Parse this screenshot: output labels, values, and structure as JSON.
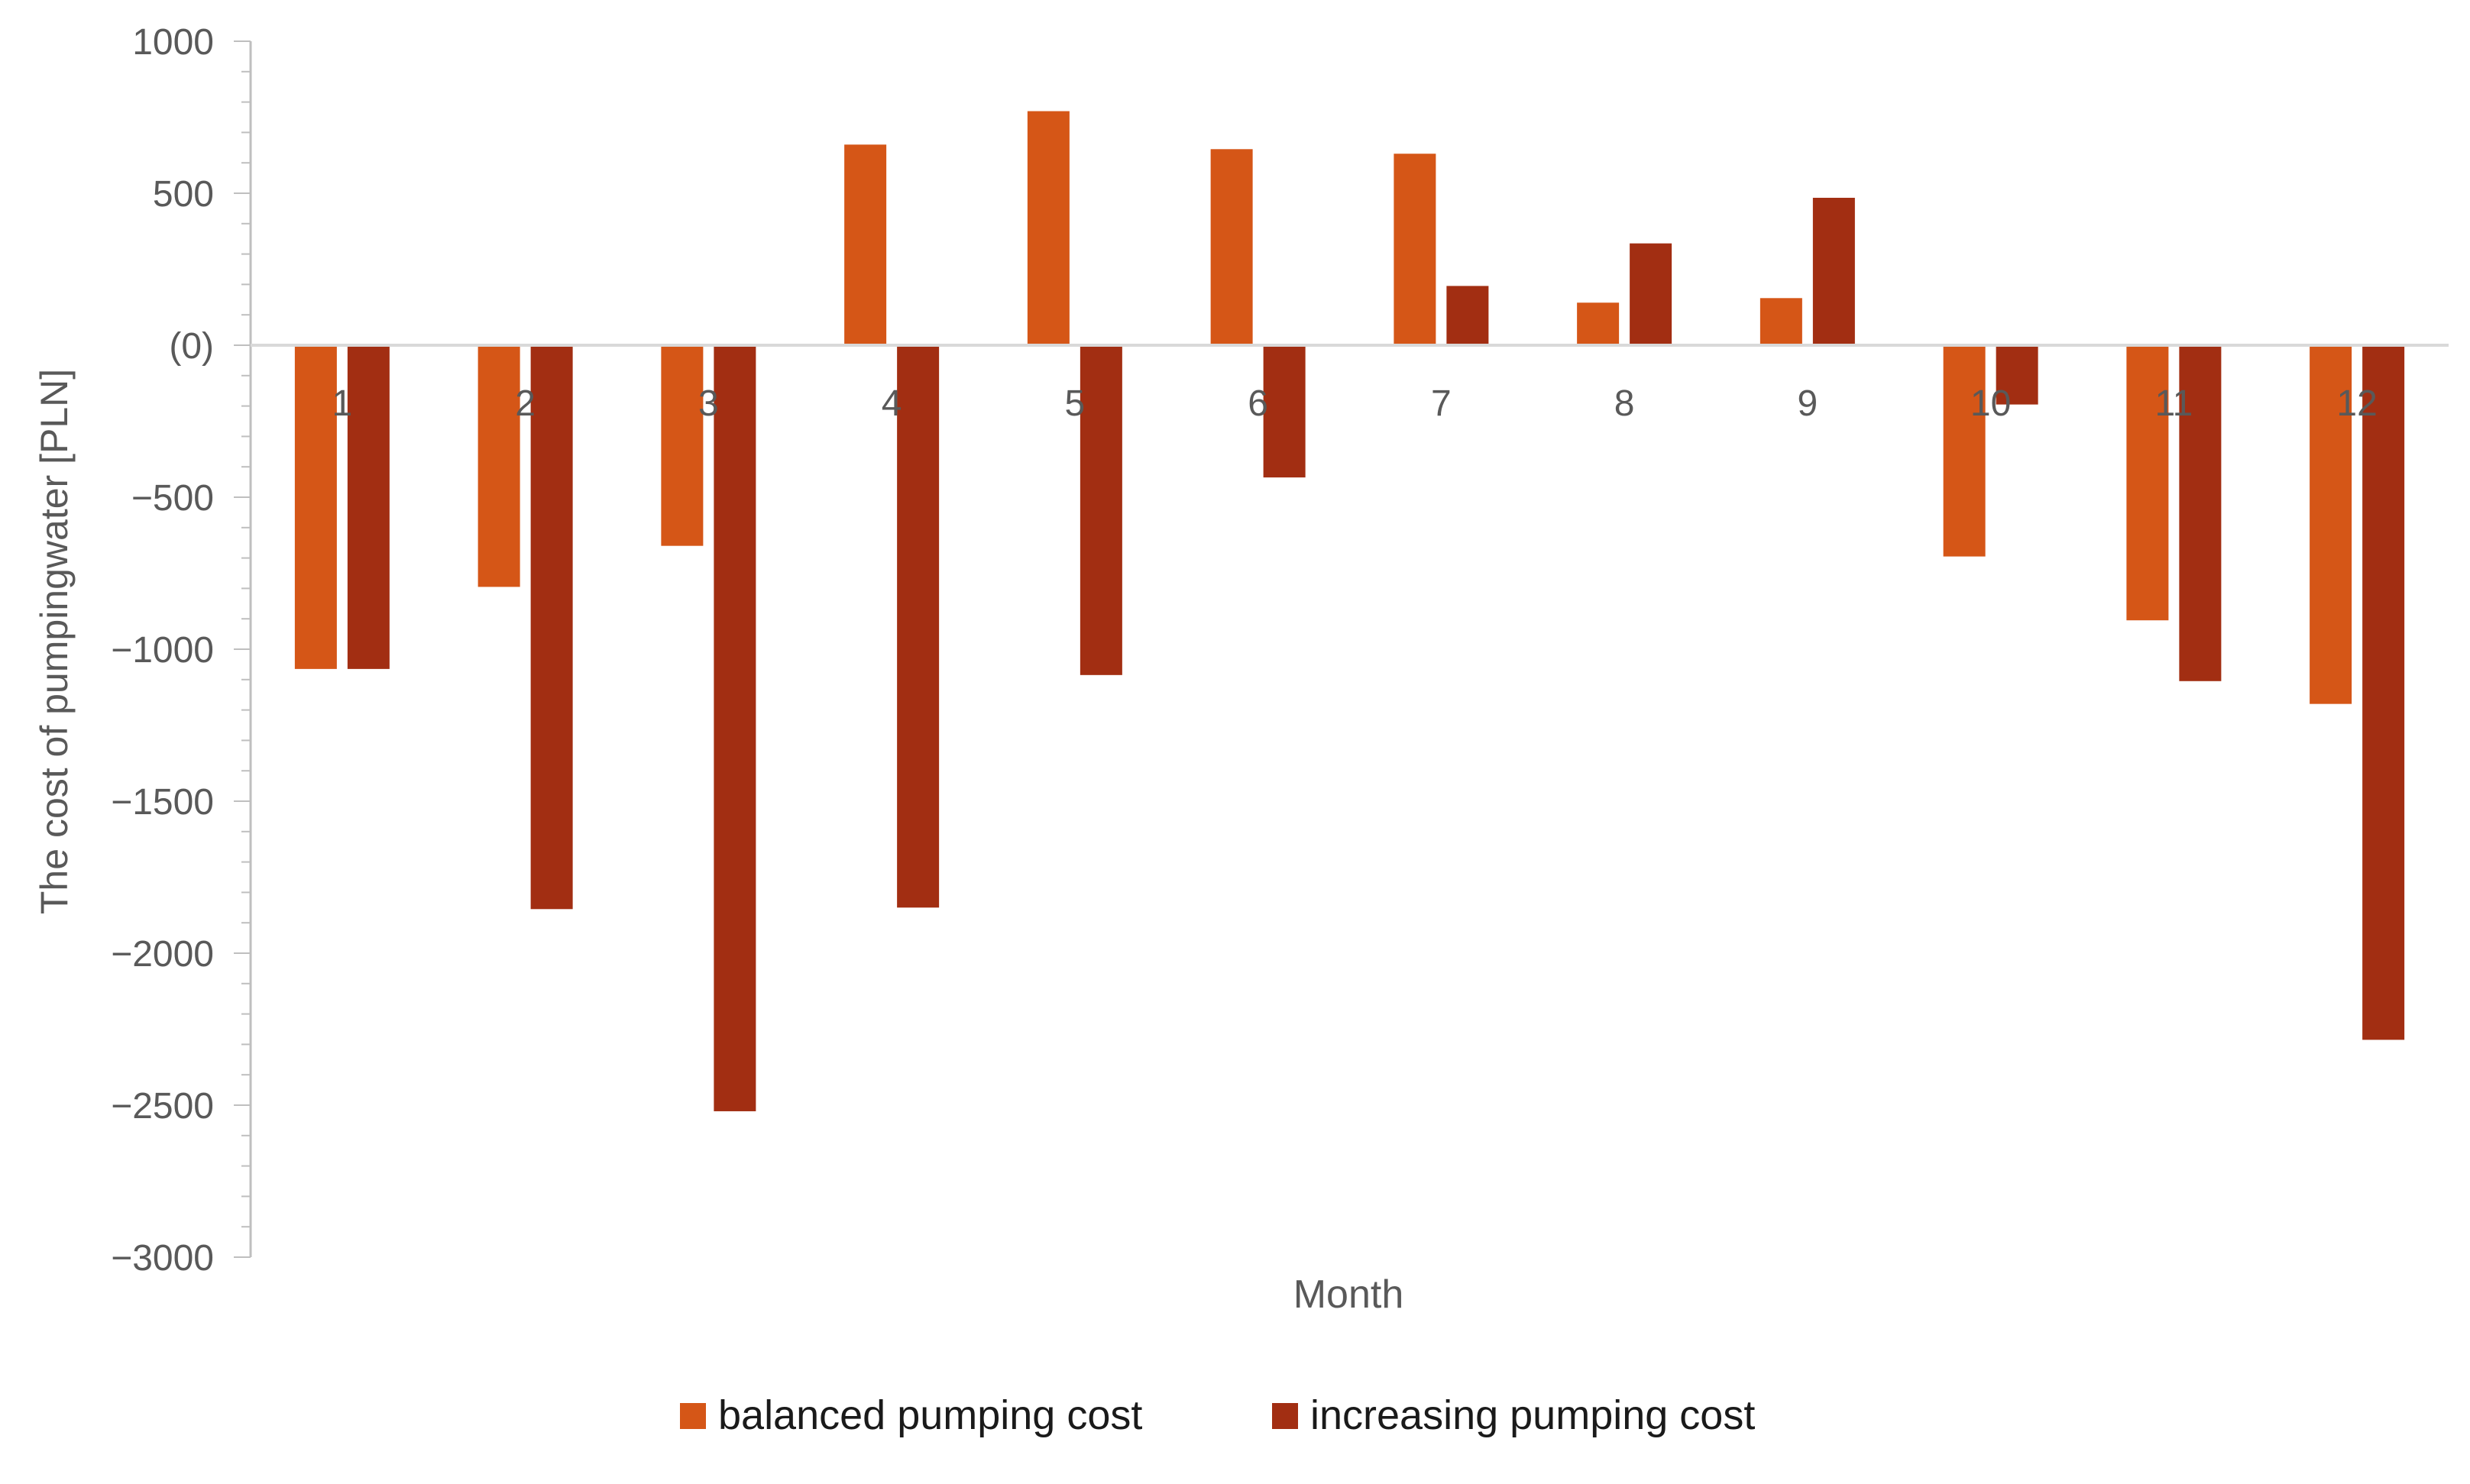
{
  "chart_data": {
    "type": "bar",
    "title": "",
    "xlabel": "Month",
    "ylabel": "The cost of pumpingwater [PLN]",
    "ylim": [
      -3000,
      1000
    ],
    "yticks": [
      1000,
      500,
      0,
      -500,
      -1000,
      -1500,
      -2000,
      -2500,
      -3000
    ],
    "ytick_labels": [
      "1000",
      "500",
      "(0)",
      "−500",
      "−1000",
      "−1500",
      "−2000",
      "−2500",
      "−3000"
    ],
    "categories": [
      "1",
      "2",
      "3",
      "4",
      "5",
      "6",
      "7",
      "8",
      "9",
      "10",
      "11",
      "12"
    ],
    "series": [
      {
        "name": "balanced pumping cost",
        "color": "#D55617",
        "values": [
          -1065,
          -795,
          -660,
          660,
          770,
          645,
          630,
          140,
          155,
          -695,
          -905,
          -1180
        ]
      },
      {
        "name": "increasing pumping cost",
        "color": "#A22E12",
        "values": [
          -1065,
          -1855,
          -2520,
          -1850,
          -1085,
          -435,
          195,
          335,
          485,
          -195,
          -1105,
          -2285
        ]
      }
    ],
    "grid": false,
    "legend_position": "bottom"
  }
}
